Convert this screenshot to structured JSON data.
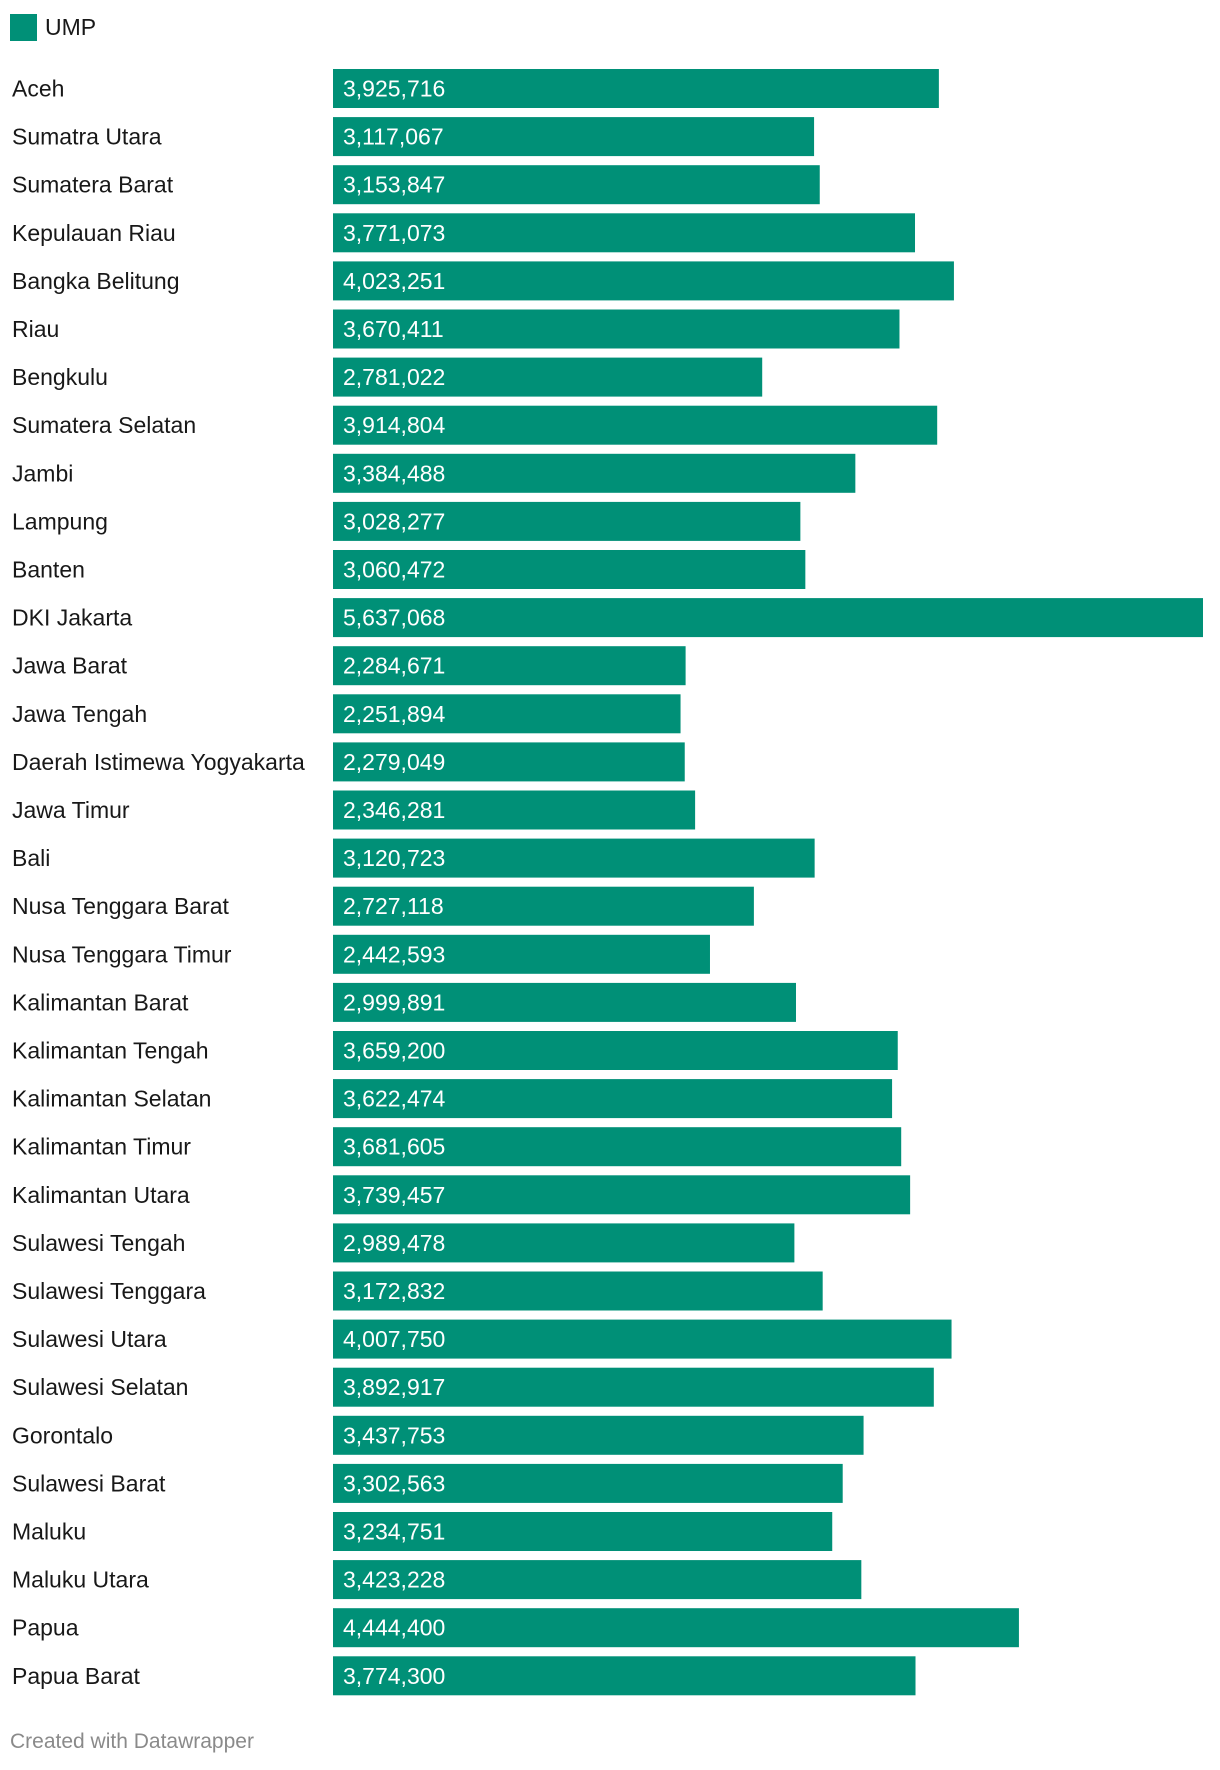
{
  "legend": {
    "label": "UMP",
    "color": "#009077"
  },
  "footer": {
    "credit": "Created with Datawrapper"
  },
  "chart_data": {
    "type": "bar",
    "orientation": "horizontal",
    "series": [
      {
        "name": "UMP",
        "color": "#009077",
        "values": [
          3925716,
          3117067,
          3153847,
          3771073,
          4023251,
          3670411,
          2781022,
          3914804,
          3384488,
          3028277,
          3060472,
          5637068,
          2284671,
          2251894,
          2279049,
          2346281,
          3120723,
          2727118,
          2442593,
          2999891,
          3659200,
          3622474,
          3681605,
          3739457,
          2989478,
          3172832,
          4007750,
          3892917,
          3437753,
          3302563,
          3234751,
          3423228,
          4444400,
          3774300
        ]
      }
    ],
    "categories": [
      "Aceh",
      "Sumatra Utara",
      "Sumatera Barat",
      "Kepulauan Riau",
      "Bangka Belitung",
      "Riau",
      "Bengkulu",
      "Sumatera Selatan",
      "Jambi",
      "Lampung",
      "Banten",
      "DKI Jakarta",
      "Jawa Barat",
      "Jawa Tengah",
      "Daerah Istimewa Yogyakarta",
      "Jawa Timur",
      "Bali",
      "Nusa Tenggara Barat",
      "Nusa Tenggara Timur",
      "Kalimantan Barat",
      "Kalimantan Tengah",
      "Kalimantan Selatan",
      "Kalimantan Timur",
      "Kalimantan Utara",
      "Sulawesi Tengah",
      "Sulawesi Tenggara",
      "Sulawesi Utara",
      "Sulawesi Selatan",
      "Gorontalo",
      "Sulawesi Barat",
      "Maluku",
      "Maluku Utara",
      "Papua",
      "Papua Barat"
    ],
    "labels": [
      "3,925,716",
      "3,117,067",
      "3,153,847",
      "3,771,073",
      "4,023,251",
      "3,670,411",
      "2,781,022",
      "3,914,804",
      "3,384,488",
      "3,028,277",
      "3,060,472",
      "5,637,068",
      "2,284,671",
      "2,251,894",
      "2,279,049",
      "2,346,281",
      "3,120,723",
      "2,727,118",
      "2,442,593",
      "2,999,891",
      "3,659,200",
      "3,622,474",
      "3,681,605",
      "3,739,457",
      "2,989,478",
      "3,172,832",
      "4,007,750",
      "3,892,917",
      "3,437,753",
      "3,302,563",
      "3,234,751",
      "3,423,228",
      "4,444,400",
      "3,774,300"
    ],
    "xlim": [
      0,
      5637068
    ],
    "grid": false,
    "legend_position": "top-left"
  }
}
